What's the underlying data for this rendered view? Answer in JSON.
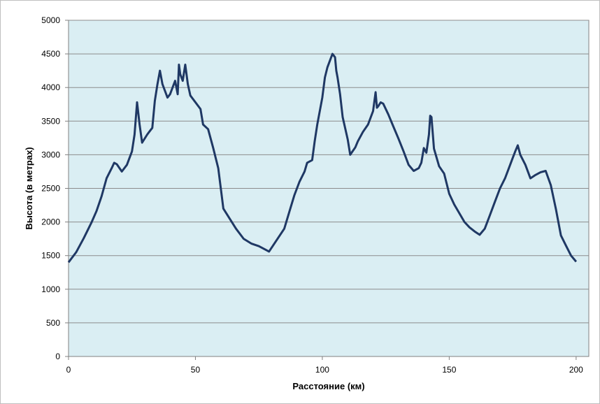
{
  "colors": {
    "plot_background": "#daeef3",
    "gridline": "#8c8c8c",
    "series_line": "#1f3864",
    "axis": "#808080"
  },
  "chart_data": {
    "type": "line",
    "title": "",
    "xlabel": "Расстояние (км)",
    "ylabel": "Высота (в метрах)",
    "xlim": [
      0,
      205
    ],
    "ylim": [
      0,
      5000
    ],
    "x_ticks": [
      0,
      50,
      100,
      150,
      200
    ],
    "y_ticks": [
      0,
      500,
      1000,
      1500,
      2000,
      2500,
      3000,
      3500,
      4000,
      4500,
      5000
    ],
    "grid": "horizontal",
    "legend": "none",
    "series": [
      {
        "x": [
          0,
          3,
          6,
          9,
          11,
          13,
          15,
          17,
          18,
          19,
          21,
          23,
          24,
          25,
          26,
          27,
          28,
          29,
          31,
          32,
          33,
          34,
          35,
          36,
          37,
          38,
          39,
          40,
          41,
          42,
          43,
          43.5,
          44,
          45,
          46,
          47,
          48,
          52,
          53,
          55,
          57,
          59,
          61,
          66,
          69,
          72,
          75,
          77,
          79,
          85,
          87,
          89,
          91,
          93,
          94,
          96,
          97,
          98,
          100,
          101,
          102,
          103,
          104,
          105,
          105.5,
          106,
          107,
          108,
          110,
          111,
          113,
          114,
          116,
          118,
          120,
          121,
          121.5,
          122,
          123,
          124,
          126,
          128,
          130,
          132,
          134,
          136,
          138,
          139,
          140,
          141,
          142,
          142.5,
          143,
          144,
          146,
          148,
          150,
          152,
          154,
          156,
          158,
          160,
          162,
          164,
          166,
          168,
          170,
          172,
          174,
          175,
          176,
          177,
          178,
          180,
          182,
          184,
          186,
          188,
          190,
          192,
          194,
          196,
          198,
          200
        ],
        "y": [
          1400,
          1550,
          1760,
          1990,
          2160,
          2380,
          2650,
          2800,
          2880,
          2860,
          2750,
          2850,
          2950,
          3050,
          3300,
          3780,
          3450,
          3180,
          3300,
          3350,
          3400,
          3800,
          4040,
          4250,
          4050,
          3950,
          3850,
          3900,
          4000,
          4100,
          3900,
          4340,
          4200,
          4100,
          4340,
          4050,
          3880,
          3680,
          3450,
          3380,
          3100,
          2800,
          2200,
          1900,
          1750,
          1680,
          1640,
          1600,
          1560,
          1900,
          2150,
          2400,
          2600,
          2750,
          2880,
          2920,
          3200,
          3450,
          3850,
          4150,
          4300,
          4400,
          4500,
          4450,
          4250,
          4150,
          3900,
          3560,
          3230,
          3000,
          3110,
          3200,
          3340,
          3450,
          3650,
          3930,
          3700,
          3720,
          3780,
          3760,
          3600,
          3420,
          3240,
          3050,
          2850,
          2760,
          2800,
          2880,
          3100,
          3030,
          3300,
          3580,
          3560,
          3090,
          2830,
          2720,
          2420,
          2260,
          2130,
          2000,
          1920,
          1860,
          1810,
          1900,
          2100,
          2300,
          2500,
          2650,
          2850,
          2950,
          3050,
          3140,
          3000,
          2850,
          2650,
          2700,
          2740,
          2760,
          2550,
          2200,
          1800,
          1650,
          1500,
          1410
        ]
      }
    ]
  }
}
